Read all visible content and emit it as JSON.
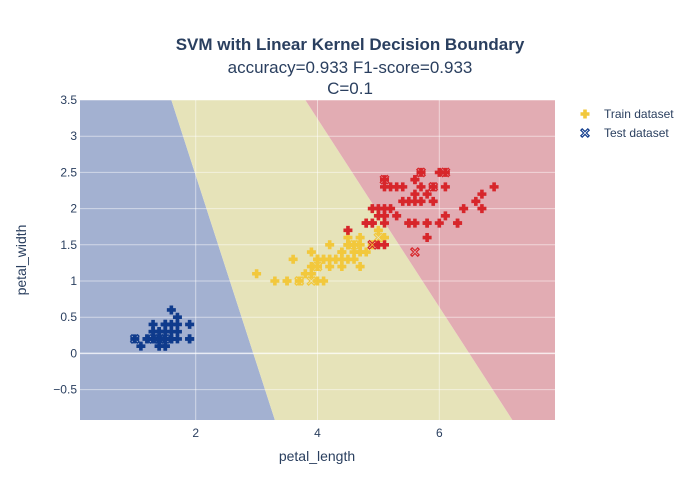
{
  "chart_data": {
    "type": "scatter",
    "title": "SVM with Linear Kernel Decision Boundary",
    "subtitle_line1": "accuracy=0.933 F1-score=0.933",
    "subtitle_line2": "C=0.1",
    "xlabel": "petal_length",
    "ylabel": "petal_width",
    "xlim": [
      0.1,
      7.9
    ],
    "ylim": [
      -0.92,
      3.5
    ],
    "x_ticks": [
      2,
      4,
      6
    ],
    "y_ticks": [
      -0.5,
      0,
      0.5,
      1,
      1.5,
      2,
      2.5,
      3,
      3.5
    ],
    "grid": true,
    "legend_position": "top-right",
    "region_colors": {
      "class0": "#a3b1d1",
      "class1": "#e6e3b9",
      "class2": "#e2acb3"
    },
    "decision_boundaries": {
      "class0_class1": [
        [
          1.6,
          3.5
        ],
        [
          3.3,
          -0.92
        ]
      ],
      "class1_class2": [
        [
          3.8,
          3.5
        ],
        [
          7.2,
          -0.92
        ]
      ]
    },
    "series": [
      {
        "name": "Train dataset",
        "marker": "cross",
        "legend_color": "#f2c83c",
        "groups": [
          {
            "color": "#0f3b8c",
            "points": [
              [
                1.4,
                0.2
              ],
              [
                1.4,
                0.2
              ],
              [
                1.3,
                0.2
              ],
              [
                1.5,
                0.2
              ],
              [
                1.4,
                0.2
              ],
              [
                1.7,
                0.4
              ],
              [
                1.4,
                0.3
              ],
              [
                1.5,
                0.2
              ],
              [
                1.4,
                0.2
              ],
              [
                1.5,
                0.1
              ],
              [
                1.5,
                0.2
              ],
              [
                1.6,
                0.2
              ],
              [
                1.4,
                0.1
              ],
              [
                1.1,
                0.1
              ],
              [
                1.2,
                0.2
              ],
              [
                1.5,
                0.4
              ],
              [
                1.3,
                0.4
              ],
              [
                1.4,
                0.3
              ],
              [
                1.7,
                0.3
              ],
              [
                1.5,
                0.3
              ],
              [
                1.7,
                0.2
              ],
              [
                1.5,
                0.4
              ],
              [
                1.0,
                0.2
              ],
              [
                1.7,
                0.5
              ],
              [
                1.9,
                0.2
              ],
              [
                1.6,
                0.2
              ],
              [
                1.6,
                0.4
              ],
              [
                1.5,
                0.2
              ],
              [
                1.4,
                0.2
              ],
              [
                1.6,
                0.2
              ],
              [
                1.6,
                0.2
              ],
              [
                1.5,
                0.4
              ],
              [
                1.5,
                0.1
              ],
              [
                1.4,
                0.2
              ],
              [
                1.2,
                0.2
              ],
              [
                1.3,
                0.2
              ],
              [
                1.3,
                0.3
              ],
              [
                1.3,
                0.3
              ],
              [
                1.6,
                0.6
              ],
              [
                1.9,
                0.4
              ],
              [
                1.4,
                0.3
              ],
              [
                1.6,
                0.2
              ],
              [
                1.4,
                0.2
              ],
              [
                1.5,
                0.2
              ],
              [
                1.9,
                0.2
              ],
              [
                1.5,
                0.1
              ],
              [
                1.3,
                0.2
              ],
              [
                1.5,
                0.3
              ],
              [
                1.4,
                0.1
              ],
              [
                1.6,
                0.3
              ]
            ]
          },
          {
            "color": "#f2c83c",
            "points": [
              [
                4.7,
                1.4
              ],
              [
                4.5,
                1.5
              ],
              [
                4.9,
                1.5
              ],
              [
                4.0,
                1.3
              ],
              [
                4.6,
                1.5
              ],
              [
                4.5,
                1.3
              ],
              [
                4.7,
                1.6
              ],
              [
                3.3,
                1.0
              ],
              [
                4.6,
                1.3
              ],
              [
                3.9,
                1.4
              ],
              [
                3.5,
                1.0
              ],
              [
                4.2,
                1.5
              ],
              [
                4.0,
                1.0
              ],
              [
                4.7,
                1.4
              ],
              [
                3.6,
                1.3
              ],
              [
                4.4,
                1.4
              ],
              [
                4.5,
                1.5
              ],
              [
                4.1,
                1.0
              ],
              [
                4.5,
                1.5
              ],
              [
                3.9,
                1.1
              ],
              [
                4.8,
                1.8
              ],
              [
                4.0,
                1.3
              ],
              [
                4.9,
                1.5
              ],
              [
                4.7,
                1.2
              ],
              [
                4.3,
                1.3
              ],
              [
                4.4,
                1.4
              ],
              [
                4.8,
                1.4
              ],
              [
                5.0,
                1.7
              ],
              [
                4.5,
                1.5
              ],
              [
                3.5,
                1.0
              ],
              [
                3.8,
                1.1
              ],
              [
                3.7,
                1.0
              ],
              [
                3.9,
                1.2
              ],
              [
                5.1,
                1.6
              ],
              [
                4.5,
                1.5
              ],
              [
                4.5,
                1.6
              ],
              [
                4.7,
                1.5
              ],
              [
                4.4,
                1.3
              ],
              [
                4.1,
                1.3
              ],
              [
                4.0,
                1.3
              ],
              [
                4.4,
                1.2
              ],
              [
                4.6,
                1.4
              ],
              [
                4.0,
                1.2
              ],
              [
                3.0,
                1.1
              ],
              [
                4.2,
                1.3
              ],
              [
                4.2,
                1.2
              ],
              [
                4.2,
                1.3
              ],
              [
                4.3,
                1.3
              ],
              [
                4.1,
                1.3
              ],
              [
                4.0,
                1.3
              ]
            ]
          },
          {
            "color": "#d7262b",
            "points": [
              [
                6.0,
                2.5
              ],
              [
                5.1,
                1.9
              ],
              [
                5.9,
                2.1
              ],
              [
                5.6,
                1.8
              ],
              [
                5.8,
                2.2
              ],
              [
                6.6,
                2.1
              ],
              [
                4.5,
                1.7
              ],
              [
                6.3,
                1.8
              ],
              [
                5.8,
                1.8
              ],
              [
                6.1,
                2.5
              ],
              [
                5.1,
                2.0
              ],
              [
                5.3,
                1.9
              ],
              [
                5.5,
                2.1
              ],
              [
                5.0,
                2.0
              ],
              [
                5.1,
                2.4
              ],
              [
                5.3,
                2.3
              ],
              [
                5.5,
                1.8
              ],
              [
                6.7,
                2.2
              ],
              [
                6.9,
                2.3
              ],
              [
                5.0,
                1.5
              ],
              [
                5.7,
                2.3
              ],
              [
                4.9,
                2.0
              ],
              [
                6.7,
                2.0
              ],
              [
                4.9,
                1.8
              ],
              [
                5.7,
                2.1
              ],
              [
                6.0,
                1.8
              ],
              [
                4.8,
                1.8
              ],
              [
                4.9,
                1.8
              ],
              [
                5.6,
                2.1
              ],
              [
                5.8,
                1.6
              ],
              [
                6.1,
                1.9
              ],
              [
                6.4,
                2.0
              ],
              [
                5.6,
                2.2
              ],
              [
                5.1,
                1.5
              ],
              [
                6.1,
                2.3
              ],
              [
                5.6,
                2.4
              ],
              [
                5.5,
                1.8
              ],
              [
                4.8,
                1.8
              ],
              [
                5.4,
                2.1
              ],
              [
                5.6,
                2.4
              ],
              [
                5.1,
                2.3
              ],
              [
                5.9,
                2.3
              ],
              [
                5.7,
                2.5
              ],
              [
                5.2,
                2.3
              ],
              [
                5.0,
                1.9
              ],
              [
                5.2,
                2.0
              ],
              [
                5.4,
                2.3
              ],
              [
                5.1,
                1.8
              ],
              [
                6.3,
                1.8
              ],
              [
                5.8,
                1.8
              ]
            ]
          }
        ]
      },
      {
        "name": "Test dataset",
        "marker": "x-open",
        "legend_color": "#0f3b8c",
        "groups": [
          {
            "color": "#0f3b8c",
            "points": [
              [
                1.0,
                0.2
              ],
              [
                1.4,
                0.2
              ],
              [
                1.5,
                0.2
              ],
              [
                1.3,
                0.2
              ]
            ]
          },
          {
            "color": "#f2c83c",
            "points": [
              [
                3.7,
                1.0
              ],
              [
                3.9,
                1.0
              ],
              [
                4.0,
                1.2
              ],
              [
                4.6,
                1.5
              ],
              [
                5.0,
                1.6
              ]
            ]
          },
          {
            "color": "#d7262b",
            "points": [
              [
                5.1,
                2.4
              ],
              [
                5.6,
                1.4
              ],
              [
                5.9,
                2.3
              ],
              [
                6.1,
                2.5
              ],
              [
                4.9,
                1.5
              ],
              [
                5.7,
                2.5
              ]
            ]
          }
        ]
      }
    ]
  }
}
